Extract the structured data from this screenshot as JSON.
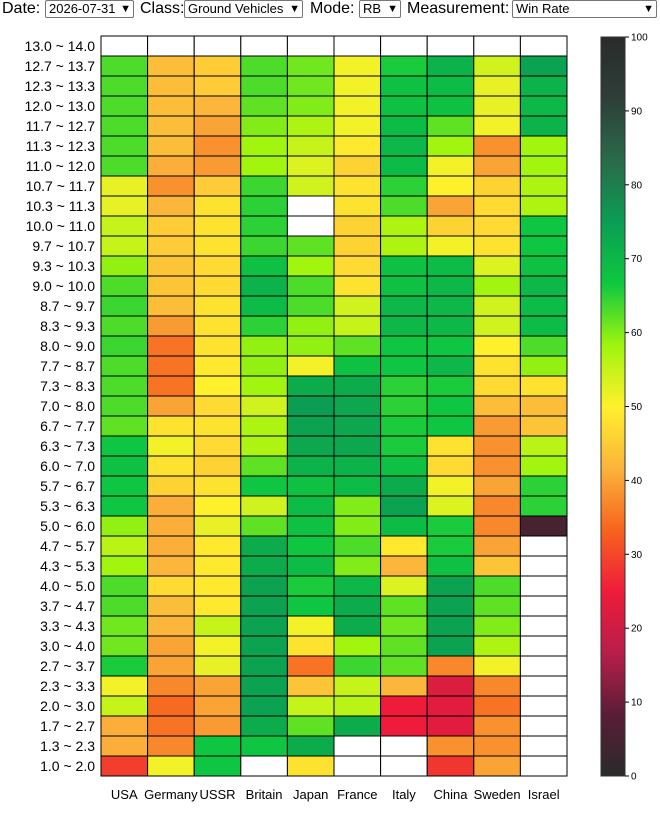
{
  "controls": {
    "date_label": "Date:",
    "date_value": "2026-07-31",
    "class_label": "Class:",
    "class_value": "Ground Vehicles",
    "mode_label": "Mode:",
    "mode_value": "RB",
    "measurement_label": "Measurement:",
    "measurement_value": "Win Rate",
    "dropdown_icon": "chevron-down-icon"
  },
  "chart_data": {
    "type": "heatmap",
    "title": "",
    "xlabel": "",
    "ylabel": "",
    "columns": [
      "USA",
      "Germany",
      "USSR",
      "Britain",
      "Japan",
      "France",
      "Italy",
      "China",
      "Sweden",
      "Israel"
    ],
    "rows": [
      "13.0 ~ 14.0",
      "12.7 ~ 13.7",
      "12.3 ~ 13.3",
      "12.0 ~ 13.0",
      "11.7 ~ 12.7",
      "11.3 ~ 12.3",
      "11.0 ~ 12.0",
      "10.7 ~ 11.7",
      "10.3 ~ 11.3",
      "10.0 ~ 11.0",
      "9.7 ~ 10.7",
      "9.3 ~ 10.3",
      "9.0 ~ 10.0",
      "8.7 ~ 9.7",
      "8.3 ~ 9.3",
      "8.0 ~ 9.0",
      "7.7 ~ 8.7",
      "7.3 ~ 8.3",
      "7.0 ~ 8.0",
      "6.7 ~ 7.7",
      "6.3 ~ 7.3",
      "6.0 ~ 7.0",
      "5.7 ~ 6.7",
      "5.3 ~ 6.3",
      "5.0 ~ 6.0",
      "4.7 ~ 5.7",
      "4.3 ~ 5.3",
      "4.0 ~ 5.0",
      "3.7 ~ 4.7",
      "3.3 ~ 4.3",
      "3.0 ~ 4.0",
      "2.7 ~ 3.7",
      "2.3 ~ 3.3",
      "2.0 ~ 3.0",
      "1.7 ~ 2.7",
      "1.3 ~ 2.3",
      "1.0 ~ 2.0"
    ],
    "values": [
      [
        null,
        null,
        null,
        null,
        null,
        null,
        null,
        null,
        null,
        null
      ],
      [
        63,
        43,
        45,
        63,
        61,
        51,
        66,
        71,
        54,
        74
      ],
      [
        63,
        43,
        45,
        63,
        61,
        51,
        68,
        69,
        52,
        71
      ],
      [
        63,
        43,
        42,
        62,
        60,
        51,
        68,
        68,
        52,
        70
      ],
      [
        63,
        43,
        40,
        60,
        57,
        51,
        69,
        62,
        51,
        71
      ],
      [
        63,
        43,
        38,
        58,
        55,
        49,
        70,
        58,
        38,
        58
      ],
      [
        63,
        41,
        39,
        58,
        53,
        46,
        69,
        51,
        40,
        58
      ],
      [
        52,
        38,
        45,
        64,
        54,
        48,
        65,
        50,
        46,
        57
      ],
      [
        52,
        42,
        48,
        65,
        null,
        48,
        63,
        40,
        47,
        57
      ],
      [
        55,
        45,
        48,
        65,
        null,
        46,
        57,
        46,
        47,
        67
      ],
      [
        55,
        45,
        48,
        64,
        62,
        46,
        57,
        51,
        48,
        67
      ],
      [
        59,
        44,
        47,
        68,
        58,
        47,
        68,
        69,
        53,
        68
      ],
      [
        63,
        44,
        47,
        71,
        63,
        48,
        68,
        70,
        58,
        70
      ],
      [
        64,
        43,
        48,
        69,
        63,
        54,
        70,
        70,
        54,
        69
      ],
      [
        63,
        39,
        48,
        65,
        59,
        55,
        70,
        70,
        54,
        69
      ],
      [
        64,
        35,
        48,
        59,
        59,
        62,
        67,
        67,
        50,
        63
      ],
      [
        63,
        35,
        49,
        59,
        51,
        68,
        67,
        70,
        48,
        59
      ],
      [
        63,
        35,
        50,
        58,
        72,
        72,
        65,
        66,
        47,
        48
      ],
      [
        63,
        40,
        47,
        54,
        75,
        73,
        65,
        67,
        43,
        43
      ],
      [
        62,
        48,
        48,
        57,
        74,
        73,
        66,
        67,
        39,
        44
      ],
      [
        67,
        51,
        47,
        57,
        73,
        73,
        66,
        48,
        38,
        56
      ],
      [
        68,
        48,
        46,
        62,
        71,
        71,
        68,
        47,
        38,
        58
      ],
      [
        67,
        46,
        48,
        67,
        68,
        69,
        72,
        51,
        40,
        65
      ],
      [
        67,
        41,
        50,
        54,
        69,
        60,
        74,
        53,
        37,
        65
      ],
      [
        59,
        41,
        52,
        62,
        68,
        60,
        69,
        66,
        37,
        5
      ],
      [
        56,
        41,
        49,
        72,
        67,
        63,
        49,
        66,
        40,
        null
      ],
      [
        58,
        42,
        49,
        72,
        69,
        60,
        42,
        68,
        44,
        null
      ],
      [
        63,
        47,
        49,
        74,
        66,
        70,
        53,
        74,
        63,
        null
      ],
      [
        63,
        43,
        49,
        74,
        67,
        72,
        62,
        74,
        62,
        null
      ],
      [
        61,
        42,
        55,
        74,
        51,
        72,
        61,
        74,
        60,
        null
      ],
      [
        61,
        40,
        51,
        74,
        48,
        58,
        62,
        74,
        57,
        null
      ],
      [
        66,
        40,
        52,
        74,
        35,
        64,
        62,
        37,
        51,
        null
      ],
      [
        51,
        37,
        40,
        74,
        44,
        55,
        42,
        22,
        37,
        null
      ],
      [
        55,
        34,
        40,
        74,
        55,
        56,
        25,
        23,
        35,
        null
      ],
      [
        41,
        35,
        39,
        72,
        62,
        72,
        25,
        23,
        38,
        null
      ],
      [
        41,
        37,
        67,
        67,
        72,
        null,
        null,
        38,
        38,
        null
      ],
      [
        29,
        51,
        67,
        null,
        48,
        null,
        null,
        28,
        40,
        null
      ]
    ],
    "color_scale": {
      "min": 0,
      "max": 100,
      "ticks": [
        0,
        10,
        20,
        30,
        40,
        50,
        60,
        70,
        80,
        90,
        100
      ],
      "stops": [
        "#2a2a2a",
        "#5a1d36",
        "#b81e4a",
        "#ee1c3a",
        "#f7641e",
        "#fbb43c",
        "#fff02c",
        "#9ef50e",
        "#0ec840",
        "#0b9d54",
        "#2a6a4a",
        "#2d3f38",
        "#2a2a2a"
      ],
      "empty_cell_color": "#ffffff"
    },
    "grid": true,
    "legend": "right"
  }
}
